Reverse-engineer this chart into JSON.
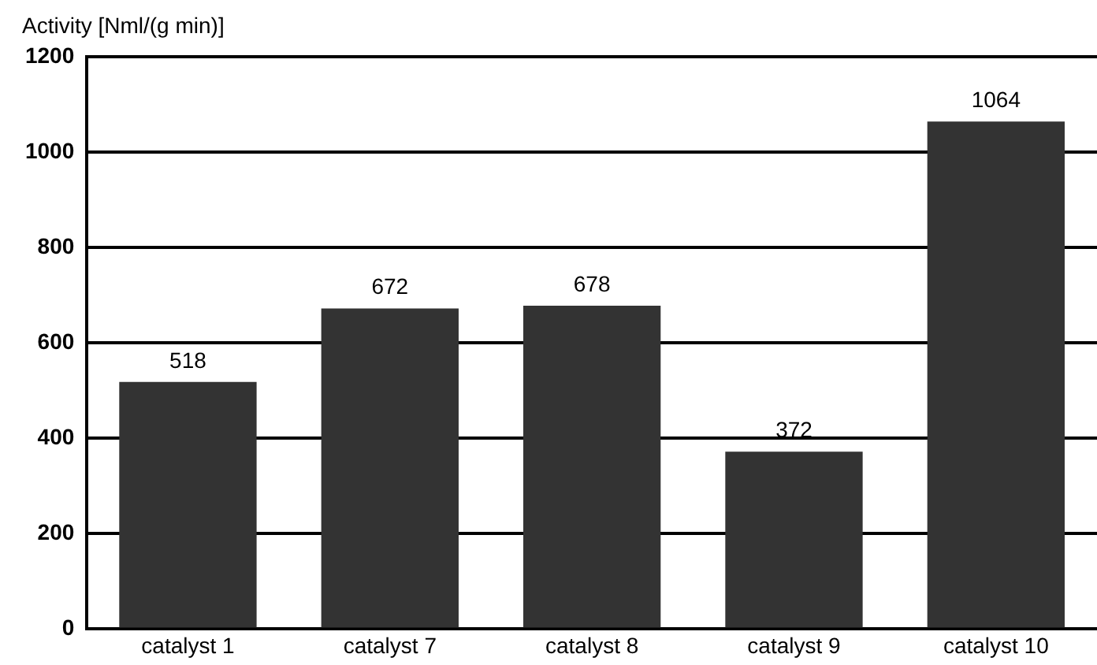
{
  "chart_data": {
    "type": "bar",
    "ylabel": "Activity [Nml/(g min)]",
    "categories": [
      "catalyst 1",
      "catalyst 7",
      "catalyst 8",
      "catalyst 9",
      "catalyst 10"
    ],
    "values": [
      518,
      672,
      678,
      372,
      1064
    ],
    "color": "#333333",
    "ylim": [
      0,
      1200
    ],
    "yticks": [
      0,
      200,
      400,
      600,
      800,
      1000,
      1200
    ],
    "grid": "y",
    "data_labels": true
  }
}
